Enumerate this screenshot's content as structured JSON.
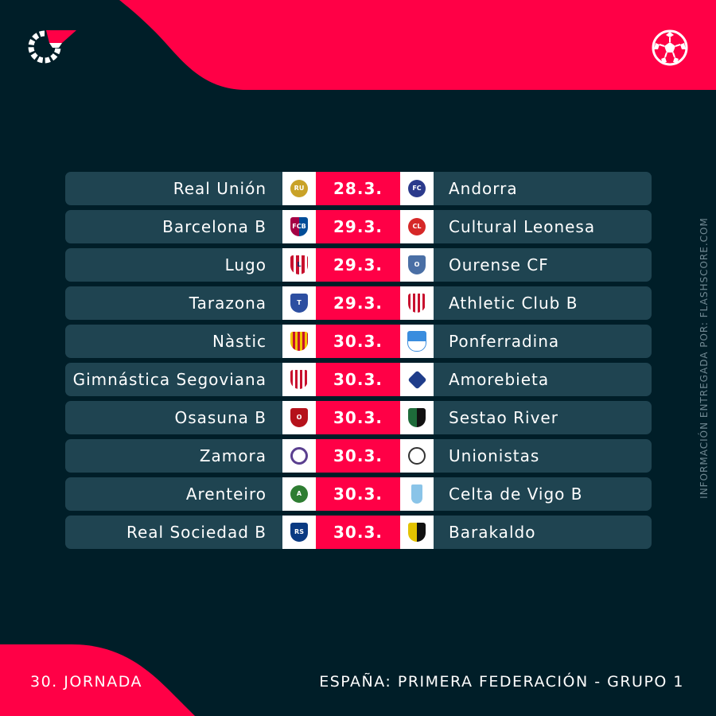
{
  "brand": {
    "logo_icon": "flashscore-logo-icon",
    "sport_icon": "football-ball-icon",
    "accent": "#ff0046",
    "background": "#001e28",
    "row_color": "#1f4451"
  },
  "credit": "INFORMACIÓN ENTREGADA POR: FLASHSCORE.COM",
  "footer": {
    "round": "30. JORNADA",
    "competition": "ESPAÑA: PRIMERA FEDERACIÓN - GRUPO 1"
  },
  "fixtures": [
    {
      "home": "Real Unión",
      "date": "28.3.",
      "away": "Andorra",
      "home_crest": {
        "icon": "real-union-crest-icon",
        "color": "#c9a227"
      },
      "away_crest": {
        "icon": "andorra-crest-icon",
        "color": "#2b3a8c"
      }
    },
    {
      "home": "Barcelona B",
      "date": "29.3.",
      "away": "Cultural Leonesa",
      "home_crest": {
        "icon": "barcelona-crest-icon",
        "color": "#a50044"
      },
      "away_crest": {
        "icon": "cultural-leonesa-crest-icon",
        "color": "#d62828"
      }
    },
    {
      "home": "Lugo",
      "date": "29.3.",
      "away": "Ourense CF",
      "home_crest": {
        "icon": "lugo-crest-icon",
        "color": "#c8102e"
      },
      "away_crest": {
        "icon": "ourense-crest-icon",
        "color": "#4a6fa5"
      }
    },
    {
      "home": "Tarazona",
      "date": "29.3.",
      "away": "Athletic Club B",
      "home_crest": {
        "icon": "tarazona-crest-icon",
        "color": "#2d4fa1"
      },
      "away_crest": {
        "icon": "athletic-club-crest-icon",
        "color": "#c8102e"
      }
    },
    {
      "home": "Nàstic",
      "date": "30.3.",
      "away": "Ponferradina",
      "home_crest": {
        "icon": "nastic-crest-icon",
        "color": "#c8102e"
      },
      "away_crest": {
        "icon": "ponferradina-crest-icon",
        "color": "#3a8dde"
      }
    },
    {
      "home": "Gimnástica Segoviana",
      "date": "30.3.",
      "away": "Amorebieta",
      "home_crest": {
        "icon": "gimnastica-segoviana-crest-icon",
        "color": "#c8102e"
      },
      "away_crest": {
        "icon": "amorebieta-crest-icon",
        "color": "#1f3d8a"
      }
    },
    {
      "home": "Osasuna B",
      "date": "30.3.",
      "away": "Sestao River",
      "home_crest": {
        "icon": "osasuna-crest-icon",
        "color": "#b5121b"
      },
      "away_crest": {
        "icon": "sestao-river-crest-icon",
        "color": "#1e6b3a"
      }
    },
    {
      "home": "Zamora",
      "date": "30.3.",
      "away": "Unionistas",
      "home_crest": {
        "icon": "zamora-crest-icon",
        "color": "#5a3f8f"
      },
      "away_crest": {
        "icon": "unionistas-crest-icon",
        "color": "#333333"
      }
    },
    {
      "home": "Arenteiro",
      "date": "30.3.",
      "away": "Celta de Vigo B",
      "home_crest": {
        "icon": "arenteiro-crest-icon",
        "color": "#2e7d32"
      },
      "away_crest": {
        "icon": "celta-vigo-crest-icon",
        "color": "#8ac4e8"
      }
    },
    {
      "home": "Real Sociedad B",
      "date": "30.3.",
      "away": "Barakaldo",
      "home_crest": {
        "icon": "real-sociedad-crest-icon",
        "color": "#0a3a82"
      },
      "away_crest": {
        "icon": "barakaldo-crest-icon",
        "color": "#e3c200"
      }
    }
  ]
}
